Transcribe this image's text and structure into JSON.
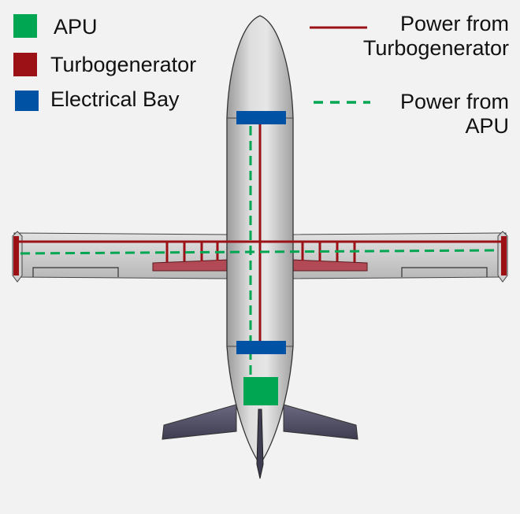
{
  "legend_left": [
    {
      "label": "APU",
      "color": "#00a651"
    },
    {
      "label": "Turbogenerator",
      "color": "#9b1116"
    },
    {
      "label": "Electrical Bay",
      "color": "#0052a5"
    }
  ],
  "legend_right": [
    {
      "line1": "Power from",
      "line2": "Turbogenerator",
      "color": "#9b1116",
      "style": "solid"
    },
    {
      "line1": "Power from",
      "line2": "APU",
      "color": "#00a651",
      "style": "dashed"
    }
  ],
  "colors": {
    "background": "#f2f2f2",
    "fuselage": "#c8c8c8",
    "tail": "#55536a",
    "apu": "#00a651",
    "turbogenerator": "#9b1116",
    "electrical_bay": "#0052a5"
  }
}
